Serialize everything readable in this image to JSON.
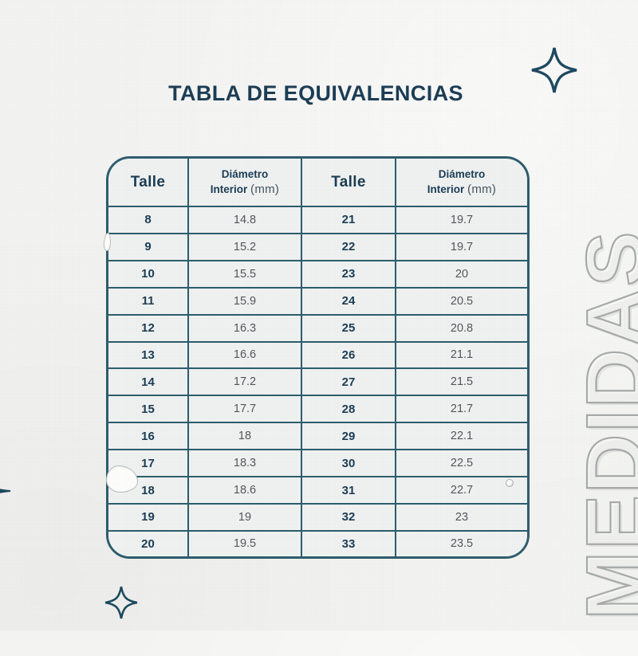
{
  "page": {
    "title": "TABLA DE EQUIVALENCIAS",
    "watermark": "MEDIDAS"
  },
  "table": {
    "headers": {
      "size_label": "Talle",
      "diameter_line1": "Diámetro",
      "diameter_line2": "Interior",
      "diameter_unit": "(mm)"
    },
    "columns": [
      "Talle",
      "Diámetro Interior (mm)",
      "Talle",
      "Diámetro Interior (mm)"
    ],
    "rows": [
      {
        "size_l": "8",
        "diam_l": "14.8",
        "size_r": "21",
        "diam_r": "19.7"
      },
      {
        "size_l": "9",
        "diam_l": "15.2",
        "size_r": "22",
        "diam_r": "19.7"
      },
      {
        "size_l": "10",
        "diam_l": "15.5",
        "size_r": "23",
        "diam_r": "20"
      },
      {
        "size_l": "11",
        "diam_l": "15.9",
        "size_r": "24",
        "diam_r": "20.5"
      },
      {
        "size_l": "12",
        "diam_l": "16.3",
        "size_r": "25",
        "diam_r": "20.8"
      },
      {
        "size_l": "13",
        "diam_l": "16.6",
        "size_r": "26",
        "diam_r": "21.1"
      },
      {
        "size_l": "14",
        "diam_l": "17.2",
        "size_r": "27",
        "diam_r": "21.5"
      },
      {
        "size_l": "15",
        "diam_l": "17.7",
        "size_r": "28",
        "diam_r": "21.7"
      },
      {
        "size_l": "16",
        "diam_l": "18",
        "size_r": "29",
        "diam_r": "22.1"
      },
      {
        "size_l": "17",
        "diam_l": "18.3",
        "size_r": "30",
        "diam_r": "22.5"
      },
      {
        "size_l": "18",
        "diam_l": "18.6",
        "size_r": "31",
        "diam_r": "22.7"
      },
      {
        "size_l": "19",
        "diam_l": "19",
        "size_r": "32",
        "diam_r": "23"
      },
      {
        "size_l": "20",
        "diam_l": "19.5",
        "size_r": "33",
        "diam_r": "23.5"
      }
    ]
  },
  "colors": {
    "title": "#1c3d55",
    "table_line": "#2e5d6d",
    "size_text": "#1c3d55",
    "diameter_text": "#54575a",
    "background": "#f3f3f1",
    "table_bg": "#eff2f1",
    "sparkle": "#1d4a60",
    "watermark_outline": "#a7abab"
  }
}
